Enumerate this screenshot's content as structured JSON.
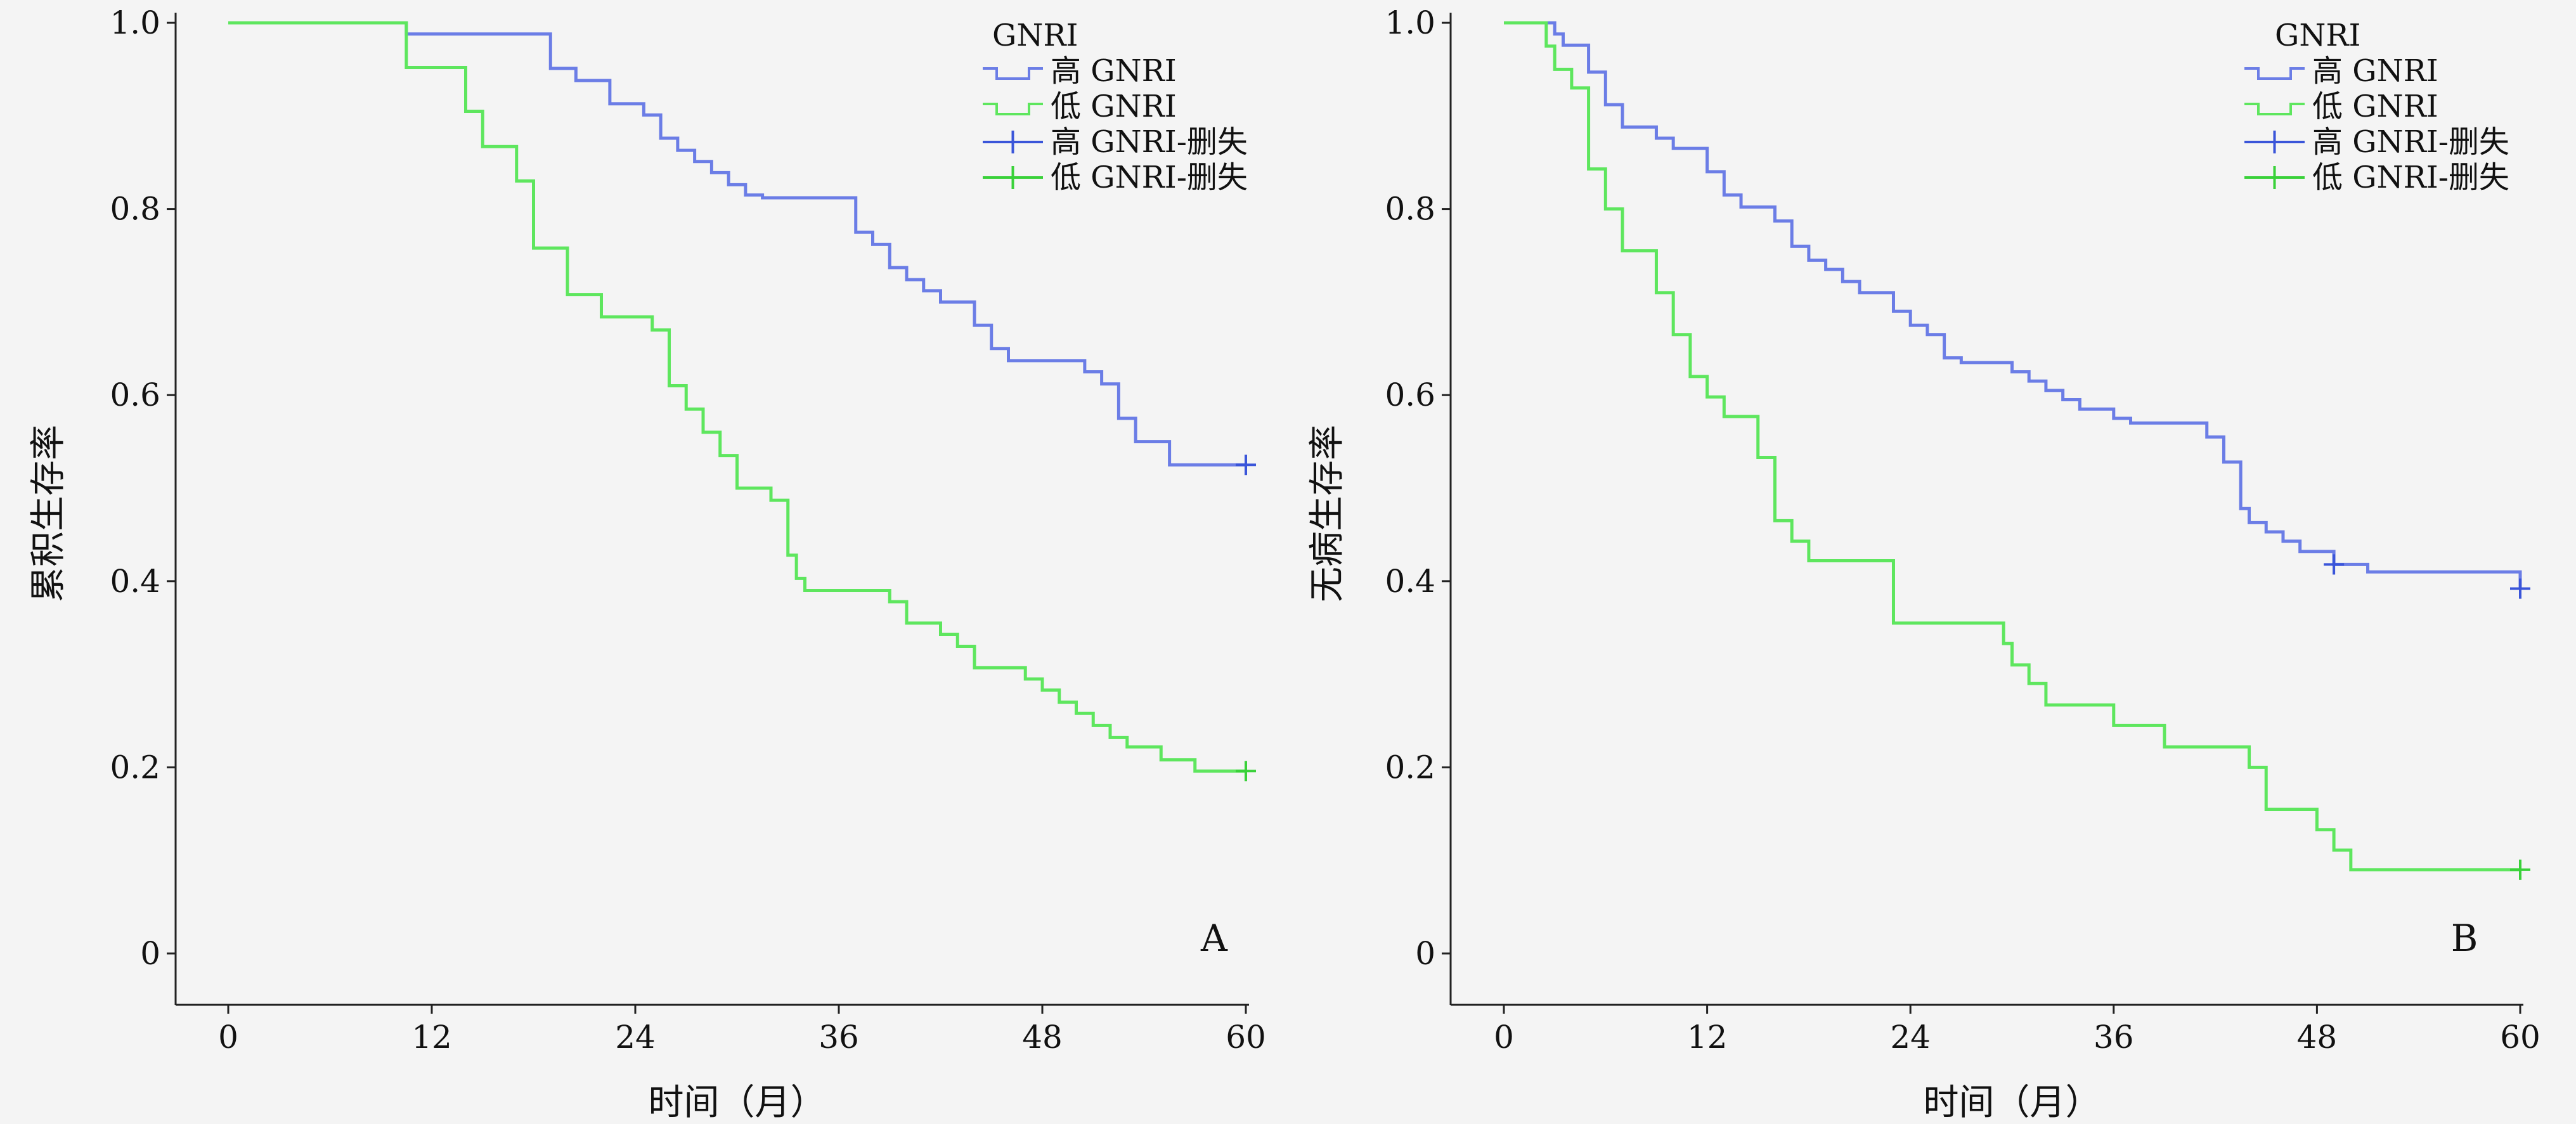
{
  "chart_data": [
    {
      "panel_label": "A",
      "type": "line",
      "step": true,
      "xlabel": "时间（月）",
      "ylabel": "累积生存率",
      "xlim": [
        0,
        60
      ],
      "ylim": [
        0,
        1
      ],
      "xticks": [
        0,
        12,
        24,
        36,
        48,
        60
      ],
      "xtick_labels": [
        "0",
        "12",
        "24",
        "36",
        "48",
        "60"
      ],
      "yticks": [
        0,
        0.2,
        0.4,
        0.6,
        0.8,
        1.0
      ],
      "ytick_labels": [
        "0",
        "0.2",
        "0.4",
        "0.6",
        "0.8",
        "1.0"
      ],
      "grid": false,
      "legend": {
        "title": "GNRI",
        "position": "top-right",
        "entries": [
          "高 GNRI",
          "低 GNRI",
          "高 GNRI-删失",
          "低 GNRI-删失"
        ]
      },
      "series": [
        {
          "name": "高 GNRI",
          "color": "#6b7de6",
          "x": [
            0,
            10.5,
            19,
            20.5,
            22.5,
            24.5,
            25.5,
            26.5,
            27.5,
            28.5,
            29.5,
            30.5,
            31.5,
            37,
            38,
            39,
            40,
            41,
            42,
            44,
            45,
            46,
            50.5,
            51.5,
            52.5,
            53.5,
            55.5,
            60
          ],
          "y": [
            1.0,
            0.988,
            0.951,
            0.938,
            0.913,
            0.901,
            0.876,
            0.863,
            0.851,
            0.839,
            0.826,
            0.815,
            0.812,
            0.775,
            0.762,
            0.737,
            0.724,
            0.712,
            0.7,
            0.675,
            0.65,
            0.637,
            0.625,
            0.612,
            0.575,
            0.55,
            0.525,
            0.525
          ]
        },
        {
          "name": "低 GNRI",
          "color": "#5ee65e",
          "x": [
            0,
            10.5,
            14,
            15,
            17,
            18,
            20,
            22,
            25,
            26,
            27,
            28,
            29,
            30,
            32,
            33,
            33.5,
            34,
            39,
            40,
            42,
            43,
            44,
            47,
            48,
            49,
            50,
            51,
            52,
            53,
            55,
            57,
            60
          ],
          "y": [
            1.0,
            0.952,
            0.905,
            0.867,
            0.83,
            0.758,
            0.708,
            0.684,
            0.67,
            0.61,
            0.585,
            0.56,
            0.535,
            0.5,
            0.487,
            0.428,
            0.403,
            0.39,
            0.378,
            0.355,
            0.343,
            0.33,
            0.307,
            0.295,
            0.283,
            0.27,
            0.258,
            0.245,
            0.232,
            0.222,
            0.208,
            0.196,
            0.196
          ]
        }
      ],
      "censored": [
        {
          "name": "高 GNRI-删失",
          "color": "#3a55d9",
          "x": [
            60
          ],
          "y": [
            0.525
          ]
        },
        {
          "name": "低 GNRI-删失",
          "color": "#39d139",
          "x": [
            60
          ],
          "y": [
            0.196
          ]
        }
      ]
    },
    {
      "panel_label": "B",
      "type": "line",
      "step": true,
      "xlabel": "时间（月）",
      "ylabel": "无病生存率",
      "xlim": [
        0,
        60
      ],
      "ylim": [
        0,
        1
      ],
      "xticks": [
        0,
        12,
        24,
        36,
        48,
        60
      ],
      "xtick_labels": [
        "0",
        "12",
        "24",
        "36",
        "48",
        "60"
      ],
      "yticks": [
        0,
        0.2,
        0.4,
        0.6,
        0.8,
        1.0
      ],
      "ytick_labels": [
        "0",
        "0.2",
        "0.4",
        "0.6",
        "0.8",
        "1.0"
      ],
      "grid": false,
      "legend": {
        "title": "GNRI",
        "position": "top-right",
        "entries": [
          "高 GNRI",
          "低 GNRI",
          "高 GNRI-删失",
          "低 GNRI-删失"
        ]
      },
      "series": [
        {
          "name": "高 GNRI",
          "color": "#6b7de6",
          "x": [
            0,
            3,
            3.5,
            5,
            6,
            7,
            9,
            10,
            12,
            13,
            14,
            16,
            17,
            18,
            19,
            20,
            21,
            23,
            24,
            25,
            26,
            27,
            30,
            31,
            32,
            33,
            34,
            36,
            37,
            38,
            41.5,
            42.5,
            43.5,
            44,
            45,
            46,
            47,
            49,
            51,
            60
          ],
          "y": [
            1.0,
            0.988,
            0.976,
            0.947,
            0.912,
            0.888,
            0.876,
            0.865,
            0.84,
            0.815,
            0.802,
            0.787,
            0.76,
            0.745,
            0.735,
            0.722,
            0.71,
            0.69,
            0.675,
            0.665,
            0.64,
            0.635,
            0.625,
            0.615,
            0.605,
            0.595,
            0.585,
            0.575,
            0.57,
            0.57,
            0.555,
            0.528,
            0.478,
            0.463,
            0.453,
            0.443,
            0.432,
            0.418,
            0.41,
            0.392
          ]
        },
        {
          "name": "低 GNRI",
          "color": "#5ee65e",
          "x": [
            0,
            2.5,
            3,
            4,
            5,
            6,
            7,
            9,
            10,
            11,
            12,
            13,
            15,
            16,
            17,
            18,
            19,
            23,
            29.5,
            30,
            31,
            32,
            33,
            36,
            39,
            44,
            45,
            48,
            49,
            50,
            51,
            60
          ],
          "y": [
            1.0,
            0.975,
            0.95,
            0.93,
            0.843,
            0.8,
            0.755,
            0.71,
            0.665,
            0.62,
            0.598,
            0.577,
            0.533,
            0.465,
            0.443,
            0.422,
            0.422,
            0.355,
            0.333,
            0.31,
            0.29,
            0.267,
            0.267,
            0.245,
            0.222,
            0.2,
            0.155,
            0.133,
            0.111,
            0.09,
            0.09,
            0.09
          ]
        }
      ],
      "censored": [
        {
          "name": "高 GNRI-删失",
          "color": "#3a55d9",
          "x": [
            49,
            60
          ],
          "y": [
            0.418,
            0.392
          ]
        },
        {
          "name": "低 GNRI-删失",
          "color": "#39d139",
          "x": [
            60
          ],
          "y": [
            0.09
          ]
        }
      ]
    }
  ]
}
